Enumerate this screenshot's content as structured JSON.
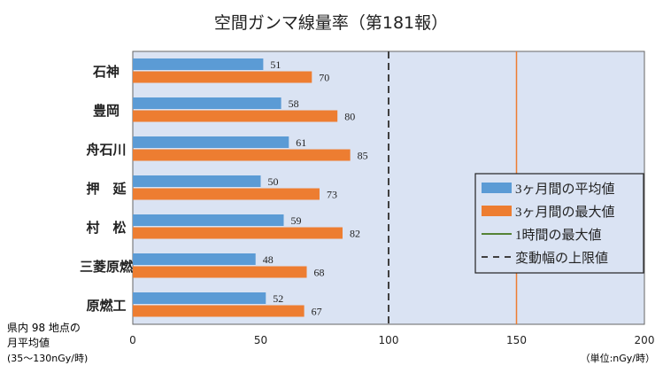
{
  "chart_data": {
    "type": "bar",
    "orientation": "horizontal",
    "title": "空間ガンマ線量率（第181報）",
    "categories": [
      "石神",
      "豊岡",
      "舟石川",
      "押　延",
      "村　松",
      "三菱原燃",
      "原燃工"
    ],
    "series": [
      {
        "name": "3ヶ月間の平均値",
        "color": "#5b9bd5",
        "values": [
          51,
          58,
          61,
          50,
          59,
          48,
          52
        ]
      },
      {
        "name": "3ヶ月間の最大値",
        "color": "#ed7d31",
        "values": [
          70,
          80,
          85,
          73,
          82,
          68,
          67
        ]
      }
    ],
    "reference_lines": [
      {
        "name": "1時間の最大値",
        "color": "#548235",
        "style": "solid",
        "value": null
      },
      {
        "name": "変動幅の上限値",
        "color": "#404040",
        "style": "dashed",
        "value": 100
      },
      {
        "name": "",
        "color": "#ed7d31",
        "style": "solid",
        "value": 150
      }
    ],
    "xlim": [
      0,
      200
    ],
    "xticks": [
      0,
      50,
      100,
      150,
      200
    ],
    "legend": "right",
    "note_left": [
      "県内 98 地点の",
      "月平均値",
      "(35～130nGy/時)"
    ],
    "unit_label": "（単位:nGy/時）",
    "plot_bg": "#dae3f3"
  }
}
